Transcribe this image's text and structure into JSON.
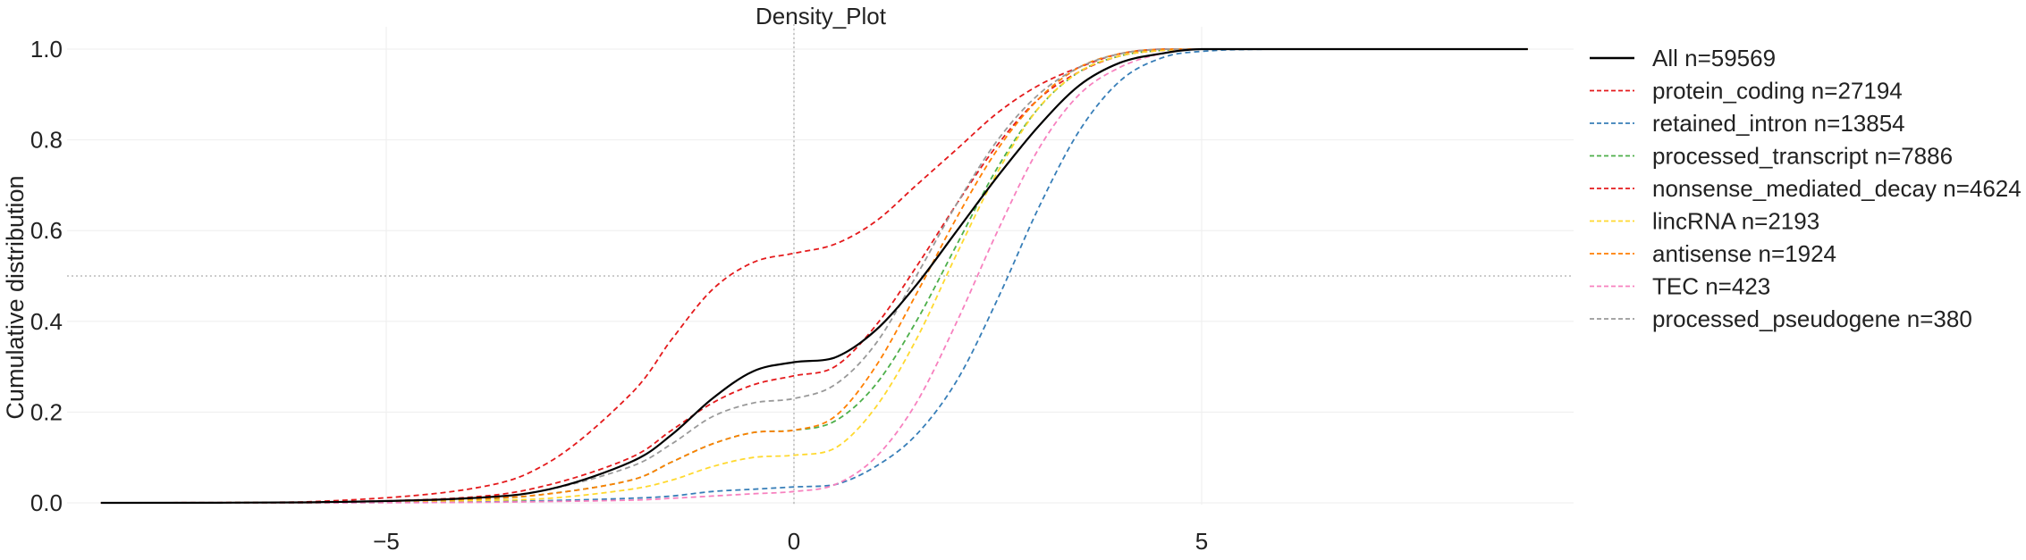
{
  "chart_data": {
    "type": "line",
    "title": "Density_Plot",
    "xlabel": "",
    "ylabel": "Cumulative distribution",
    "xlim": [
      -9,
      9
    ],
    "ylim": [
      0,
      1
    ],
    "x_ticks": [
      -5,
      0,
      5
    ],
    "x_tick_labels": [
      "−5",
      "0",
      "5"
    ],
    "y_ticks": [
      0.0,
      0.2,
      0.4,
      0.6,
      0.8,
      1.0
    ],
    "y_tick_labels": [
      "0.0",
      "0.2",
      "0.4",
      "0.6",
      "0.8",
      "1.0"
    ],
    "grid": true,
    "reference_lines": {
      "x": 0,
      "y": 0.5
    },
    "legend_position": "right",
    "x": [
      -8.5,
      -6,
      -4,
      -3,
      -2,
      -1.5,
      -1,
      -0.5,
      0,
      0.5,
      1,
      1.5,
      2,
      2.5,
      3,
      3.5,
      4,
      4.5,
      5,
      6,
      9
    ],
    "series": [
      {
        "name": "All n=59569",
        "color": "#000000",
        "style": "solid",
        "values": [
          0,
          0.001,
          0.01,
          0.03,
          0.09,
          0.15,
          0.23,
          0.29,
          0.31,
          0.32,
          0.38,
          0.48,
          0.6,
          0.72,
          0.83,
          0.92,
          0.97,
          0.99,
          1.0,
          1.0,
          1.0
        ]
      },
      {
        "name": "protein_coding  n=27194",
        "color": "#e41a1c",
        "style": "dashed",
        "values": [
          0,
          0.002,
          0.03,
          0.09,
          0.24,
          0.36,
          0.47,
          0.53,
          0.55,
          0.57,
          0.62,
          0.7,
          0.78,
          0.86,
          0.92,
          0.96,
          0.99,
          1.0,
          1.0,
          1.0,
          1.0
        ]
      },
      {
        "name": "retained_intron  n=13854",
        "color": "#377eb8",
        "style": "dashed",
        "values": [
          0,
          0.0,
          0.002,
          0.005,
          0.01,
          0.015,
          0.025,
          0.03,
          0.035,
          0.04,
          0.08,
          0.15,
          0.27,
          0.45,
          0.65,
          0.82,
          0.93,
          0.98,
          0.995,
          1.0,
          1.0
        ]
      },
      {
        "name": "processed_transcript  n=7886",
        "color": "#4daf4a",
        "style": "dashed",
        "values": [
          0,
          0.001,
          0.007,
          0.02,
          0.05,
          0.09,
          0.13,
          0.155,
          0.16,
          0.18,
          0.26,
          0.4,
          0.57,
          0.74,
          0.87,
          0.95,
          0.985,
          0.997,
          1.0,
          1.0,
          1.0
        ]
      },
      {
        "name": "nonsense_mediated_decay  n=4624",
        "color": "#e41a1c",
        "style": "dashed",
        "values": [
          0,
          0.001,
          0.012,
          0.04,
          0.1,
          0.16,
          0.22,
          0.26,
          0.28,
          0.3,
          0.39,
          0.52,
          0.66,
          0.79,
          0.89,
          0.95,
          0.985,
          0.997,
          1.0,
          1.0,
          1.0
        ]
      },
      {
        "name": "lincRNA  n=2193",
        "color": "#ffd92f",
        "style": "dashed",
        "values": [
          0,
          0.0,
          0.005,
          0.01,
          0.03,
          0.05,
          0.08,
          0.1,
          0.105,
          0.12,
          0.21,
          0.36,
          0.55,
          0.73,
          0.87,
          0.95,
          0.985,
          0.997,
          1.0,
          1.0,
          1.0
        ]
      },
      {
        "name": "antisense  n=1924",
        "color": "#ff7f00",
        "style": "dashed",
        "values": [
          0,
          0.001,
          0.008,
          0.02,
          0.05,
          0.09,
          0.13,
          0.155,
          0.16,
          0.19,
          0.3,
          0.46,
          0.63,
          0.78,
          0.89,
          0.96,
          0.99,
          1.0,
          1.0,
          1.0,
          1.0
        ]
      },
      {
        "name": "TEC  n=423",
        "color": "#f781bf",
        "style": "dashed",
        "values": [
          0,
          0.0,
          0.001,
          0.003,
          0.006,
          0.01,
          0.015,
          0.02,
          0.025,
          0.04,
          0.1,
          0.22,
          0.4,
          0.6,
          0.78,
          0.9,
          0.96,
          0.99,
          1.0,
          1.0,
          1.0
        ]
      },
      {
        "name": "processed_pseudogene  n=380",
        "color": "#999999",
        "style": "dashed",
        "values": [
          0,
          0.001,
          0.01,
          0.03,
          0.08,
          0.13,
          0.19,
          0.22,
          0.23,
          0.26,
          0.35,
          0.5,
          0.66,
          0.8,
          0.9,
          0.96,
          0.99,
          1.0,
          1.0,
          1.0,
          1.0
        ]
      }
    ]
  }
}
